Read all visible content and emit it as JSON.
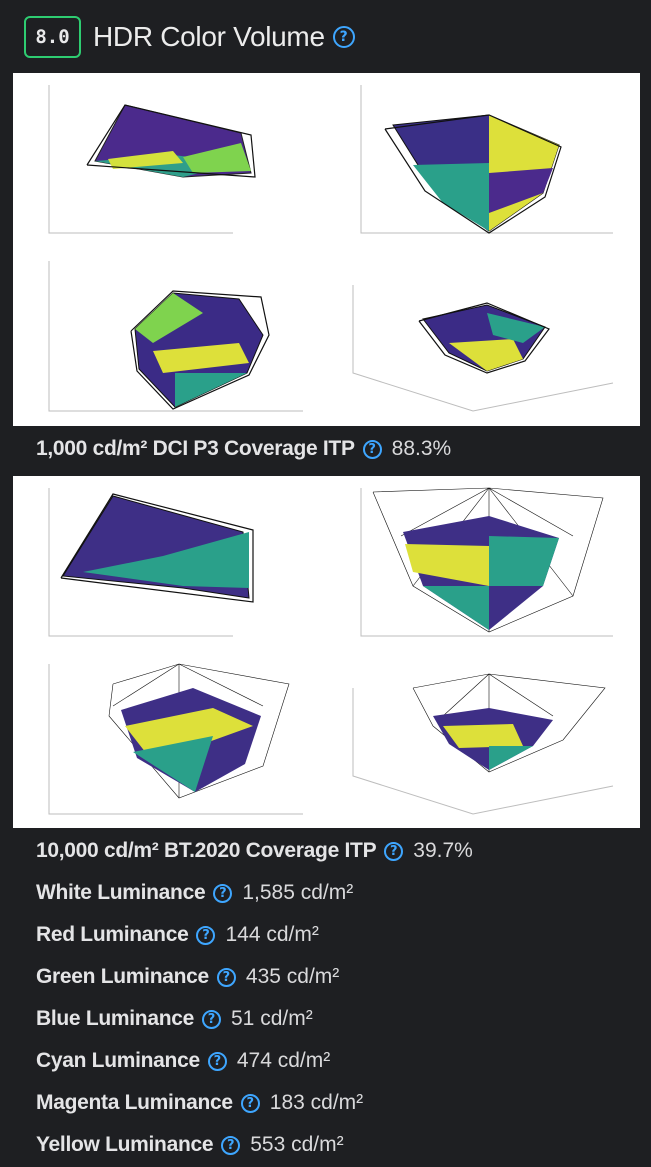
{
  "header": {
    "score": "8.0",
    "title": "HDR Color Volume",
    "help_icon": "help-circle-icon"
  },
  "accent_colors": {
    "score_border": "#2ecc71",
    "help": "#3ea6ff"
  },
  "plots": [
    {
      "caption_label": "1,000 cd/m² DCI P3 Coverage ITP",
      "caption_value": "88.3%"
    },
    {
      "caption_label": "10,000 cd/m² BT.2020 Coverage ITP",
      "caption_value": "39.7%"
    }
  ],
  "measurements": [
    {
      "label": "White Luminance",
      "value": "1,585 cd/m²"
    },
    {
      "label": "Red Luminance",
      "value": "144 cd/m²"
    },
    {
      "label": "Green Luminance",
      "value": "435 cd/m²"
    },
    {
      "label": "Blue Luminance",
      "value": "51 cd/m²"
    },
    {
      "label": "Cyan Luminance",
      "value": "474 cd/m²"
    },
    {
      "label": "Magenta Luminance",
      "value": "183 cd/m²"
    },
    {
      "label": "Yellow Luminance",
      "value": "553 cd/m²"
    }
  ]
}
